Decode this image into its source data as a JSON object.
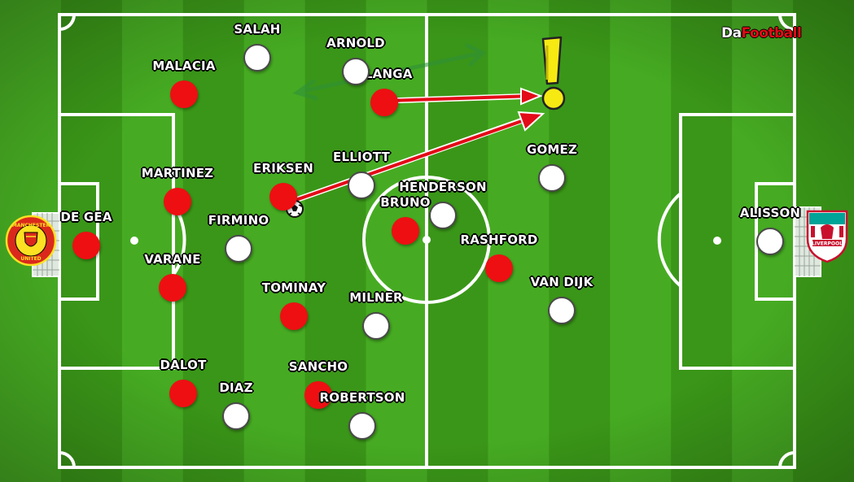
{
  "brand": {
    "part1": "Da",
    "part2": "Football"
  },
  "colors": {
    "home": "#ee0f12",
    "away": "#ffffff",
    "arrow": "#e30b17",
    "highlight": "#f7ea12"
  },
  "home_team": {
    "crest_text": "MANCHESTER UNITED",
    "players": [
      {
        "name": "DE GEA"
      },
      {
        "name": "MALACIA"
      },
      {
        "name": "MARTINEZ"
      },
      {
        "name": "VARANE"
      },
      {
        "name": "DALOT"
      },
      {
        "name": "ERIKSEN"
      },
      {
        "name": "TOMINAY"
      },
      {
        "name": "SANCHO"
      },
      {
        "name": "ELANGA"
      },
      {
        "name": "BRUNO"
      },
      {
        "name": "RASHFORD"
      }
    ]
  },
  "away_team": {
    "crest_text": "LIVERPOOL",
    "players": [
      {
        "name": "SALAH"
      },
      {
        "name": "ARNOLD"
      },
      {
        "name": "FIRMINO"
      },
      {
        "name": "ELLIOTT"
      },
      {
        "name": "HENDERSON"
      },
      {
        "name": "MILNER"
      },
      {
        "name": "DIAZ"
      },
      {
        "name": "ROBERTSON"
      },
      {
        "name": "GOMEZ"
      },
      {
        "name": "VAN DIJK"
      },
      {
        "name": "ALISSON"
      }
    ]
  }
}
